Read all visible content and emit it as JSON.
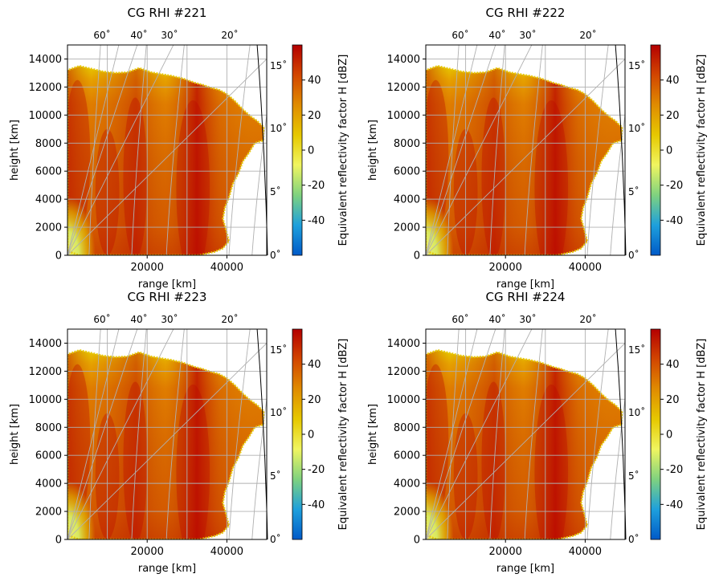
{
  "colorbar": {
    "label": "Equivalent reflectivity factor H [dBZ]",
    "ticks": [
      "-40",
      "-20",
      "0",
      "20",
      "40"
    ],
    "tick_values": [
      -40,
      -20,
      0,
      20,
      40
    ],
    "range": [
      -60,
      60
    ],
    "colors": [
      "#005ac8",
      "#1ea0dc",
      "#7fd27f",
      "#f0f560",
      "#e6c800",
      "#e08c00",
      "#d24600",
      "#b40000"
    ]
  },
  "colors": {
    "grid": "#b0b0b0",
    "axes": "#000000",
    "echo_edge": "#e6c800"
  },
  "chart_data": [
    {
      "type": "heatmap",
      "title": "CG RHI #221",
      "xlabel": "range [km]",
      "ylabel": "height [km]",
      "xticks": [
        "20000",
        "40000"
      ],
      "yticks": [
        "0",
        "2000",
        "4000",
        "6000",
        "8000",
        "10000",
        "12000",
        "14000"
      ],
      "xlim": [
        0,
        50000
      ],
      "ylim": [
        0,
        15000
      ],
      "elevation_ticks": [
        "0˚",
        "5˚",
        "10˚",
        "15˚"
      ],
      "azimuth_ticks": [
        "60˚",
        "40˚",
        "30˚",
        "20˚"
      ],
      "grid": true
    },
    {
      "type": "heatmap",
      "title": "CG RHI #222",
      "xlabel": "range [km]",
      "ylabel": "height [km]",
      "xticks": [
        "20000",
        "40000"
      ],
      "yticks": [
        "0",
        "2000",
        "4000",
        "6000",
        "8000",
        "10000",
        "12000",
        "14000"
      ],
      "xlim": [
        0,
        50000
      ],
      "ylim": [
        0,
        15000
      ],
      "elevation_ticks": [
        "0˚",
        "5˚",
        "10˚",
        "15˚"
      ],
      "azimuth_ticks": [
        "60˚",
        "40˚",
        "30˚",
        "20˚"
      ],
      "grid": true
    },
    {
      "type": "heatmap",
      "title": "CG RHI #223",
      "xlabel": "range [km]",
      "ylabel": "height [km]",
      "xticks": [
        "20000",
        "40000"
      ],
      "yticks": [
        "0",
        "2000",
        "4000",
        "6000",
        "8000",
        "10000",
        "12000",
        "14000"
      ],
      "xlim": [
        0,
        50000
      ],
      "ylim": [
        0,
        15000
      ],
      "elevation_ticks": [
        "0˚",
        "5˚",
        "10˚",
        "15˚"
      ],
      "azimuth_ticks": [
        "60˚",
        "40˚",
        "30˚",
        "20˚"
      ],
      "grid": true
    },
    {
      "type": "heatmap",
      "title": "CG RHI #224",
      "xlabel": "range [km]",
      "ylabel": "height [km]",
      "xticks": [
        "20000",
        "40000"
      ],
      "yticks": [
        "0",
        "2000",
        "4000",
        "6000",
        "8000",
        "10000",
        "12000",
        "14000"
      ],
      "xlim": [
        0,
        50000
      ],
      "ylim": [
        0,
        15000
      ],
      "elevation_ticks": [
        "0˚",
        "5˚",
        "10˚",
        "15˚"
      ],
      "azimuth_ticks": [
        "60˚",
        "40˚",
        "30˚",
        "20˚"
      ],
      "grid": true
    }
  ]
}
